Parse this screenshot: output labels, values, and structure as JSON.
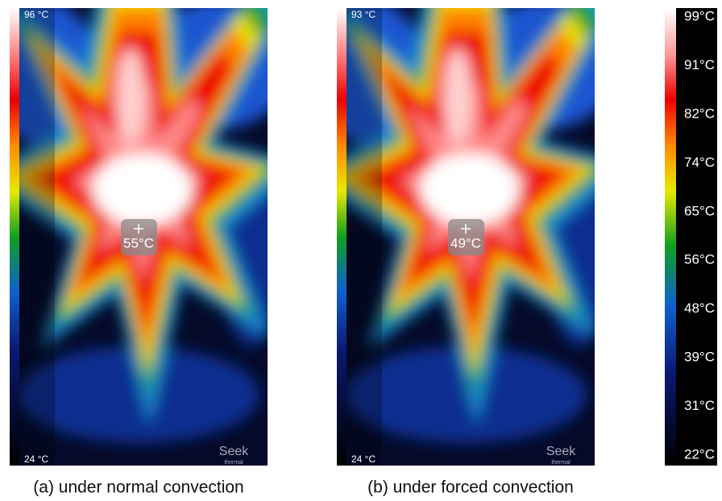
{
  "panels": [
    {
      "max_label": "96 °C",
      "min_label": "24 °C",
      "spot_label": "55°C",
      "logo": "Seek",
      "logo_sub": "thermal",
      "caption": "(a) under normal convection"
    },
    {
      "max_label": "93 °C",
      "min_label": "24 °C",
      "spot_label": "49°C",
      "logo": "Seek",
      "logo_sub": "thermal",
      "caption": "(b) under forced convection"
    }
  ],
  "colorbar": {
    "labels": [
      "99°C",
      "91°C",
      "82°C",
      "74°C",
      "65°C",
      "56°C",
      "48°C",
      "39°C",
      "31°C",
      "22°C"
    ]
  }
}
